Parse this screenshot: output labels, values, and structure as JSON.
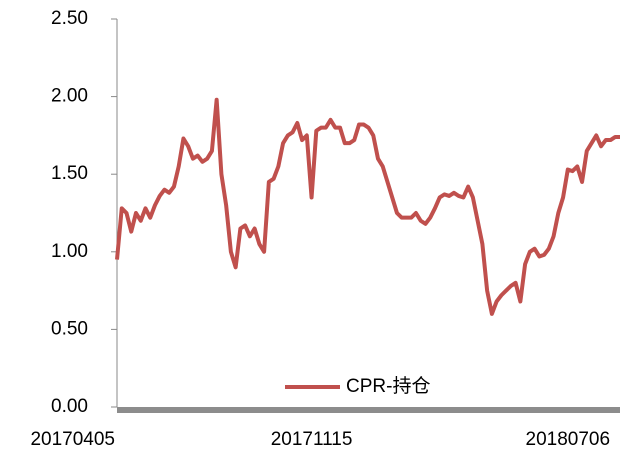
{
  "chart_data": {
    "type": "line",
    "categories": [
      "20170405",
      null,
      null,
      null,
      null,
      null,
      null,
      null,
      null,
      null,
      null,
      null,
      null,
      null,
      null,
      null,
      null,
      null,
      null,
      null,
      null,
      null,
      null,
      null,
      null,
      null,
      null,
      null,
      null,
      null,
      null,
      null,
      null,
      null,
      null,
      null,
      null,
      null,
      null,
      null,
      null,
      "20171115",
      null,
      null,
      null,
      null,
      null,
      null,
      null,
      null,
      null,
      null,
      null,
      null,
      null,
      null,
      null,
      null,
      null,
      null,
      null,
      null,
      null,
      null,
      null,
      null,
      null,
      null,
      null,
      null,
      null,
      null,
      null,
      null,
      null,
      null,
      null,
      null,
      null,
      null,
      null,
      null,
      null,
      null,
      null,
      null,
      null,
      null,
      null,
      null,
      null,
      null,
      null,
      null,
      null,
      "20180706",
      null,
      null,
      null,
      null,
      null,
      null,
      null,
      null,
      null,
      null,
      null
    ],
    "series": [
      {
        "name": "CPR-持仓",
        "color": "#c0504d",
        "values": [
          0.95,
          1.28,
          1.25,
          1.13,
          1.25,
          1.2,
          1.28,
          1.22,
          1.3,
          1.36,
          1.4,
          1.38,
          1.42,
          1.55,
          1.73,
          1.68,
          1.6,
          1.62,
          1.58,
          1.6,
          1.65,
          1.98,
          1.5,
          1.3,
          1.0,
          0.9,
          1.15,
          1.17,
          1.1,
          1.15,
          1.05,
          1.0,
          1.45,
          1.47,
          1.55,
          1.7,
          1.75,
          1.77,
          1.83,
          1.72,
          1.75,
          1.35,
          1.78,
          1.8,
          1.8,
          1.85,
          1.8,
          1.8,
          1.7,
          1.7,
          1.72,
          1.82,
          1.82,
          1.8,
          1.75,
          1.6,
          1.55,
          1.45,
          1.35,
          1.25,
          1.22,
          1.22,
          1.22,
          1.25,
          1.2,
          1.18,
          1.22,
          1.28,
          1.35,
          1.37,
          1.36,
          1.38,
          1.36,
          1.35,
          1.42,
          1.35,
          1.2,
          1.05,
          0.75,
          0.6,
          0.68,
          0.72,
          0.75,
          0.78,
          0.8,
          0.68,
          0.92,
          1.0,
          1.02,
          0.97,
          0.98,
          1.02,
          1.1,
          1.25,
          1.35,
          1.53,
          1.52,
          1.55,
          1.45,
          1.65,
          1.7,
          1.75,
          1.68,
          1.72,
          1.72,
          1.74,
          1.74
        ]
      }
    ],
    "ylim": [
      0,
      2.5
    ],
    "yticks": [
      {
        "value": 0,
        "label": "0.00"
      },
      {
        "value": 0.5,
        "label": "0.50"
      },
      {
        "value": 1,
        "label": "1.00"
      },
      {
        "value": 1.5,
        "label": "1.50"
      },
      {
        "value": 2,
        "label": "2.00"
      },
      {
        "value": 2.5,
        "label": "2.50"
      }
    ],
    "grid": false,
    "legend": "bottom"
  }
}
